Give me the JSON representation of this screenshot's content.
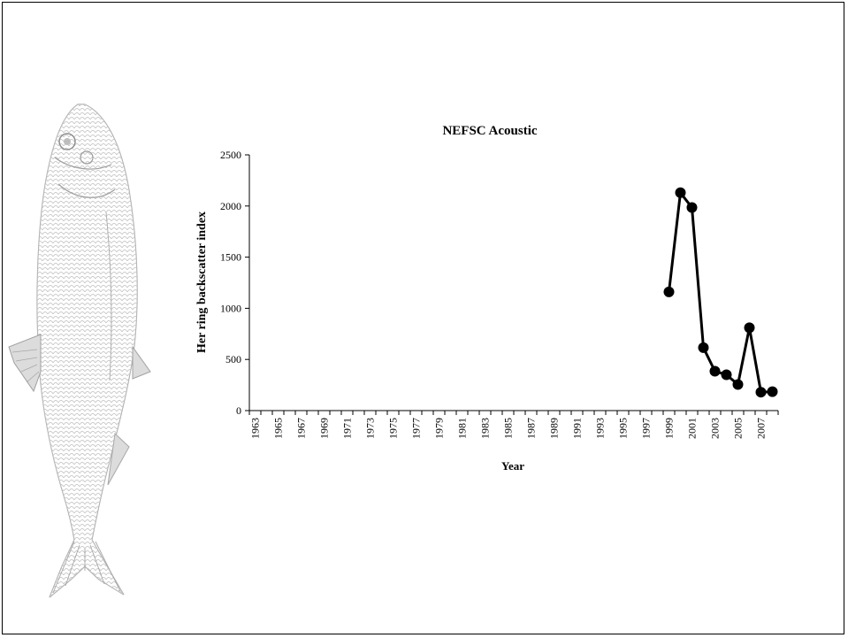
{
  "chart_data": {
    "type": "line",
    "title": "NEFSC Acoustic",
    "xlabel": "Year",
    "ylabel": "Her ring backscatter index",
    "ylim": [
      0,
      2500
    ],
    "yticks": [
      0,
      500,
      1000,
      1500,
      2000,
      2500
    ],
    "xlim": [
      1963,
      2008
    ],
    "xtick_labels": [
      "1963",
      "1965",
      "1967",
      "1969",
      "1971",
      "1973",
      "1975",
      "1977",
      "1979",
      "1981",
      "1983",
      "1985",
      "1987",
      "1989",
      "1991",
      "1993",
      "1995",
      "1997",
      "1999",
      "2001",
      "2003",
      "2005",
      "2007"
    ],
    "grid": false,
    "series": [
      {
        "x": [
          1999,
          2000,
          2001,
          2002,
          2003,
          2004,
          2005,
          2006,
          2007,
          2008
        ],
        "values": [
          1160,
          2130,
          1985,
          615,
          385,
          350,
          255,
          810,
          180,
          185
        ],
        "color": "#000000"
      }
    ]
  }
}
